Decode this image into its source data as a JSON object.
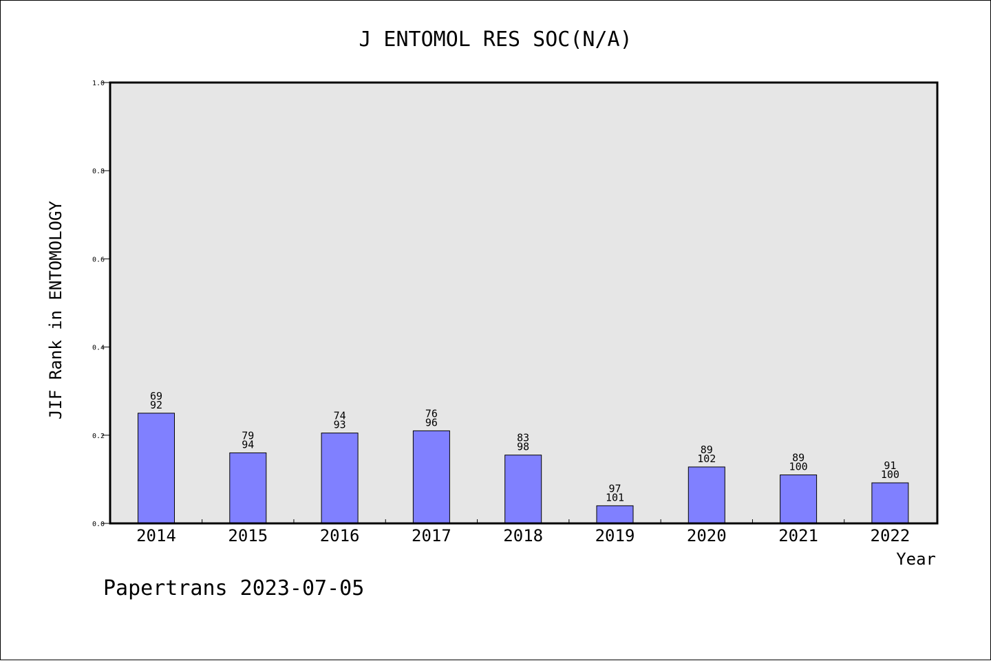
{
  "chart_data": {
    "type": "bar",
    "title": "J ENTOMOL RES SOC(N/A)",
    "xlabel": "Year",
    "ylabel": "JIF Rank in ENTOMOLOGY",
    "categories": [
      "2014",
      "2015",
      "2016",
      "2017",
      "2018",
      "2019",
      "2020",
      "2021",
      "2022"
    ],
    "values": [
      0.25,
      0.16,
      0.205,
      0.21,
      0.155,
      0.04,
      0.128,
      0.11,
      0.092
    ],
    "rank": [
      "69",
      "79",
      "74",
      "76",
      "83",
      "97",
      "89",
      "89",
      "91"
    ],
    "total": [
      "92",
      "94",
      "93",
      "96",
      "98",
      "101",
      "102",
      "100",
      "100"
    ],
    "ylim": [
      0,
      1.0
    ],
    "yticks": [
      "0.0",
      "0.2",
      "0.4",
      "0.6",
      "0.8",
      "1.0"
    ],
    "grid": false,
    "colors": {
      "bar": "#8080ff",
      "plot_bg": "#e6e6e6",
      "axis": "#000000"
    }
  },
  "footer": {
    "credit": "Papertrans 2023-07-05"
  }
}
